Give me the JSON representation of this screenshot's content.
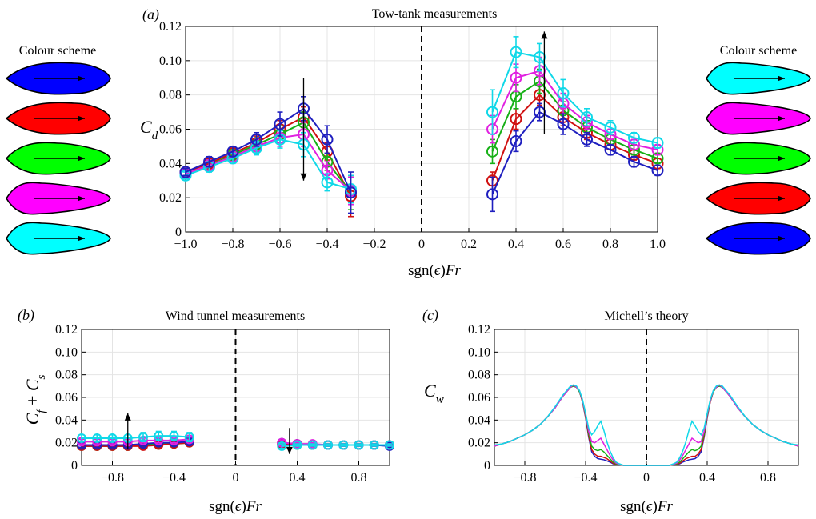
{
  "colors": {
    "blue": "#0000ff",
    "red": "#ff0000",
    "green": "#00ff00",
    "magenta": "#ff00ff",
    "cyan": "#00ffff",
    "darkblue": "#1f1fbf",
    "darkred": "#d01010",
    "darkgreen": "#16b016",
    "darkmagenta": "#e020e0",
    "darkcyan": "#10d8e8"
  },
  "legends": {
    "left": {
      "title": "Colour scheme",
      "shapes": [
        {
          "fill": "blue",
          "shape": "fore"
        },
        {
          "fill": "red",
          "shape": "fore"
        },
        {
          "fill": "green",
          "shape": "sym"
        },
        {
          "fill": "magenta",
          "shape": "aft"
        },
        {
          "fill": "cyan",
          "shape": "aft"
        }
      ]
    },
    "right": {
      "title": "Colour scheme",
      "shapes": [
        {
          "fill": "cyan",
          "shape": "aft"
        },
        {
          "fill": "magenta",
          "shape": "aft"
        },
        {
          "fill": "green",
          "shape": "sym"
        },
        {
          "fill": "red",
          "shape": "fore"
        },
        {
          "fill": "blue",
          "shape": "fore"
        }
      ]
    }
  },
  "chart_data": [
    {
      "id": "a",
      "panel_label": "(a)",
      "type": "line",
      "title": "Tow-tank measurements",
      "ylabel": "C_d",
      "xlabel": "sgn(ϵ)Fr",
      "xlim": [
        -1.0,
        1.0
      ],
      "ylim": [
        0,
        0.12
      ],
      "xticks": [
        -1.0,
        -0.8,
        -0.6,
        -0.4,
        -0.2,
        0,
        0.2,
        0.4,
        0.6,
        0.8,
        1.0
      ],
      "xtick_labels": [
        "−1.0",
        "−0.8",
        "−0.6",
        "−0.4",
        "−0.2",
        "0",
        "0.2",
        "0.4",
        "0.6",
        "0.8",
        "1.0"
      ],
      "yticks": [
        0,
        0.02,
        0.04,
        0.06,
        0.08,
        0.1,
        0.12
      ],
      "ytick_labels": [
        "0",
        "0.02",
        "0.04",
        "0.06",
        "0.08",
        "0.10",
        "0.12"
      ],
      "grid": true,
      "markers": true,
      "x_neg": [
        -1.0,
        -0.9,
        -0.8,
        -0.7,
        -0.6,
        -0.5,
        -0.4,
        -0.3
      ],
      "x_pos": [
        0.3,
        0.4,
        0.5,
        0.6,
        0.7,
        0.8,
        0.9,
        1.0
      ],
      "series": [
        {
          "color": "darkred",
          "neg": [
            0.035,
            0.04,
            0.046,
            0.052,
            0.06,
            0.067,
            0.047,
            0.021
          ],
          "pos": [
            0.03,
            0.066,
            0.08,
            0.067,
            0.058,
            0.051,
            0.045,
            0.04
          ],
          "err_neg": [
            0.002,
            0.003,
            0.003,
            0.004,
            0.005,
            0.006,
            0.005,
            0.012
          ],
          "err_pos": [
            0.005,
            0.006,
            0.006,
            0.005,
            0.004,
            0.003,
            0.003,
            0.003
          ]
        },
        {
          "color": "darkgreen",
          "neg": [
            0.034,
            0.039,
            0.045,
            0.051,
            0.057,
            0.064,
            0.041,
            0.023
          ],
          "pos": [
            0.047,
            0.079,
            0.088,
            0.071,
            0.061,
            0.054,
            0.048,
            0.043
          ],
          "err_neg": [
            0.002,
            0.003,
            0.003,
            0.004,
            0.005,
            0.006,
            0.005,
            0.01
          ],
          "err_pos": [
            0.007,
            0.007,
            0.007,
            0.005,
            0.004,
            0.003,
            0.003,
            0.003
          ]
        },
        {
          "color": "darkmagenta",
          "neg": [
            0.034,
            0.039,
            0.044,
            0.05,
            0.055,
            0.057,
            0.036,
            0.024
          ],
          "pos": [
            0.06,
            0.09,
            0.094,
            0.075,
            0.064,
            0.057,
            0.051,
            0.048
          ],
          "err_neg": [
            0.002,
            0.003,
            0.003,
            0.004,
            0.005,
            0.007,
            0.005,
            0.008
          ],
          "err_pos": [
            0.008,
            0.008,
            0.008,
            0.006,
            0.004,
            0.003,
            0.003,
            0.003
          ]
        },
        {
          "color": "darkcyan",
          "neg": [
            0.033,
            0.038,
            0.043,
            0.049,
            0.054,
            0.051,
            0.029,
            0.025
          ],
          "pos": [
            0.07,
            0.105,
            0.102,
            0.081,
            0.067,
            0.061,
            0.055,
            0.052
          ],
          "err_neg": [
            0.002,
            0.003,
            0.003,
            0.004,
            0.005,
            0.007,
            0.005,
            0.008
          ],
          "err_pos": [
            0.013,
            0.009,
            0.008,
            0.008,
            0.005,
            0.004,
            0.003,
            0.003
          ]
        },
        {
          "color": "darkblue",
          "neg": [
            0.035,
            0.041,
            0.047,
            0.054,
            0.063,
            0.072,
            0.054,
            0.023
          ],
          "pos": [
            0.022,
            0.053,
            0.07,
            0.063,
            0.054,
            0.048,
            0.041,
            0.036
          ],
          "err_neg": [
            0.002,
            0.003,
            0.003,
            0.004,
            0.007,
            0.007,
            0.008,
            0.012
          ],
          "err_pos": [
            0.01,
            0.006,
            0.005,
            0.006,
            0.004,
            0.003,
            0.003,
            0.003
          ]
        }
      ],
      "arrows": [
        {
          "x": -0.5,
          "y_from": 0.09,
          "y_to": 0.03
        },
        {
          "x": 0.52,
          "y_from": 0.057,
          "y_to": 0.117
        }
      ]
    },
    {
      "id": "b",
      "panel_label": "(b)",
      "type": "line",
      "title": "Wind tunnel measurements",
      "ylabel": "C_f + C_s",
      "xlabel": "sgn(ϵ)Fr",
      "xlim": [
        -1.0,
        1.0
      ],
      "ylim": [
        0,
        0.12
      ],
      "xticks": [
        -0.8,
        -0.4,
        0,
        0.4,
        0.8
      ],
      "xtick_labels": [
        "−0.8",
        "−0.4",
        "0",
        "0.4",
        "0.8"
      ],
      "yticks": [
        0,
        0.02,
        0.04,
        0.06,
        0.08,
        0.1,
        0.12
      ],
      "ytick_labels": [
        "0",
        "0.02",
        "0.04",
        "0.06",
        "0.08",
        "0.10",
        "0.12"
      ],
      "grid": true,
      "markers": true,
      "x_neg": [
        -1.0,
        -0.9,
        -0.8,
        -0.7,
        -0.6,
        -0.5,
        -0.4,
        -0.3
      ],
      "x_pos": [
        0.3,
        0.4,
        0.5,
        0.6,
        0.7,
        0.8,
        0.9,
        1.0
      ],
      "series": [
        {
          "color": "darkgreen",
          "neg": [
            0.017,
            0.017,
            0.017,
            0.017,
            0.018,
            0.019,
            0.019,
            0.02
          ],
          "pos": [
            0.018,
            0.018,
            0.018,
            0.018,
            0.018,
            0.018,
            0.018,
            0.018
          ],
          "err_neg": [
            0.002,
            0.002,
            0.002,
            0.002,
            0.002,
            0.002,
            0.002,
            0.002
          ],
          "err_pos": [
            0.002,
            0.001,
            0.001,
            0.001,
            0.001,
            0.001,
            0.001,
            0.001
          ]
        },
        {
          "color": "darkred",
          "neg": [
            0.017,
            0.017,
            0.017,
            0.017,
            0.017,
            0.018,
            0.019,
            0.02
          ],
          "pos": [
            0.019,
            0.019,
            0.018,
            0.018,
            0.018,
            0.018,
            0.018,
            0.018
          ],
          "err_neg": [
            0.002,
            0.002,
            0.002,
            0.002,
            0.002,
            0.002,
            0.002,
            0.002
          ],
          "err_pos": [
            0.002,
            0.001,
            0.001,
            0.001,
            0.001,
            0.001,
            0.001,
            0.001
          ]
        },
        {
          "color": "darkblue",
          "neg": [
            0.018,
            0.018,
            0.018,
            0.018,
            0.019,
            0.02,
            0.02,
            0.021
          ],
          "pos": [
            0.02,
            0.019,
            0.018,
            0.018,
            0.018,
            0.018,
            0.018,
            0.017
          ],
          "err_neg": [
            0.002,
            0.002,
            0.002,
            0.002,
            0.002,
            0.002,
            0.002,
            0.002
          ],
          "err_pos": [
            0.002,
            0.001,
            0.001,
            0.001,
            0.001,
            0.001,
            0.001,
            0.001
          ]
        },
        {
          "color": "darkmagenta",
          "neg": [
            0.021,
            0.021,
            0.021,
            0.021,
            0.022,
            0.022,
            0.022,
            0.023
          ],
          "pos": [
            0.02,
            0.019,
            0.019,
            0.018,
            0.018,
            0.018,
            0.018,
            0.018
          ],
          "err_neg": [
            0.002,
            0.002,
            0.002,
            0.002,
            0.002,
            0.002,
            0.002,
            0.002
          ],
          "err_pos": [
            0.002,
            0.001,
            0.001,
            0.001,
            0.001,
            0.001,
            0.001,
            0.001
          ]
        },
        {
          "color": "darkcyan",
          "neg": [
            0.024,
            0.024,
            0.024,
            0.024,
            0.025,
            0.026,
            0.026,
            0.025
          ],
          "pos": [
            0.017,
            0.018,
            0.018,
            0.018,
            0.018,
            0.018,
            0.018,
            0.018
          ],
          "err_neg": [
            0.003,
            0.003,
            0.003,
            0.003,
            0.004,
            0.004,
            0.004,
            0.004
          ],
          "err_pos": [
            0.002,
            0.001,
            0.001,
            0.001,
            0.001,
            0.001,
            0.001,
            0.001
          ]
        }
      ],
      "arrows": [
        {
          "x": -0.7,
          "y_from": 0.014,
          "y_to": 0.046
        },
        {
          "x": 0.35,
          "y_from": 0.033,
          "y_to": 0.01
        }
      ]
    },
    {
      "id": "c",
      "panel_label": "(c)",
      "type": "line",
      "title": "Michell’s theory",
      "ylabel": "C_w",
      "xlabel": "sgn(ϵ)Fr",
      "xlim": [
        -1.0,
        1.0
      ],
      "ylim": [
        0,
        0.12
      ],
      "xticks": [
        -0.8,
        -0.4,
        0,
        0.4,
        0.8
      ],
      "xtick_labels": [
        "−0.8",
        "−0.4",
        "0",
        "0.4",
        "0.8"
      ],
      "yticks": [
        0,
        0.02,
        0.04,
        0.06,
        0.08,
        0.1,
        0.12
      ],
      "ytick_labels": [
        "0",
        "0.02",
        "0.04",
        "0.06",
        "0.08",
        "0.10",
        "0.12"
      ],
      "grid": true,
      "markers": false,
      "x": [
        0.0,
        0.05,
        0.1,
        0.15,
        0.18,
        0.2,
        0.22,
        0.24,
        0.26,
        0.28,
        0.3,
        0.32,
        0.34,
        0.36,
        0.38,
        0.4,
        0.42,
        0.44,
        0.46,
        0.48,
        0.5,
        0.55,
        0.6,
        0.65,
        0.7,
        0.75,
        0.8,
        0.85,
        0.9,
        0.95,
        1.0
      ],
      "series": [
        {
          "color": "darkblue",
          "y": [
            0.0,
            0.0,
            0.0,
            0.0,
            0.0005,
            0.0008,
            0.0015,
            0.003,
            0.004,
            0.005,
            0.0055,
            0.006,
            0.008,
            0.012,
            0.025,
            0.042,
            0.056,
            0.065,
            0.069,
            0.07,
            0.069,
            0.061,
            0.051,
            0.043,
            0.036,
            0.031,
            0.027,
            0.024,
            0.021,
            0.019,
            0.017
          ]
        },
        {
          "color": "darkred",
          "y": [
            0.0,
            0.0,
            0.0,
            0.0,
            0.0006,
            0.001,
            0.002,
            0.004,
            0.006,
            0.007,
            0.008,
            0.008,
            0.01,
            0.014,
            0.026,
            0.043,
            0.056,
            0.065,
            0.069,
            0.07,
            0.069,
            0.061,
            0.051,
            0.043,
            0.036,
            0.031,
            0.027,
            0.024,
            0.021,
            0.019,
            0.017
          ]
        },
        {
          "color": "darkgreen",
          "y": [
            0.0,
            0.0,
            0.0,
            0.0,
            0.0008,
            0.0015,
            0.003,
            0.006,
            0.009,
            0.012,
            0.014,
            0.013,
            0.014,
            0.017,
            0.028,
            0.044,
            0.057,
            0.065,
            0.069,
            0.07,
            0.069,
            0.061,
            0.051,
            0.043,
            0.036,
            0.031,
            0.027,
            0.024,
            0.021,
            0.019,
            0.017
          ]
        },
        {
          "color": "darkmagenta",
          "y": [
            0.0,
            0.0,
            0.0,
            0.0,
            0.001,
            0.002,
            0.005,
            0.009,
            0.014,
            0.019,
            0.024,
            0.022,
            0.02,
            0.021,
            0.03,
            0.045,
            0.057,
            0.066,
            0.069,
            0.071,
            0.069,
            0.061,
            0.051,
            0.043,
            0.036,
            0.031,
            0.027,
            0.024,
            0.021,
            0.019,
            0.017
          ]
        },
        {
          "color": "darkcyan",
          "y": [
            0.0,
            0.0,
            0.0,
            0.0,
            0.0015,
            0.003,
            0.007,
            0.013,
            0.021,
            0.031,
            0.039,
            0.035,
            0.03,
            0.027,
            0.033,
            0.046,
            0.058,
            0.066,
            0.07,
            0.071,
            0.07,
            0.062,
            0.052,
            0.043,
            0.036,
            0.031,
            0.027,
            0.024,
            0.021,
            0.019,
            0.018
          ]
        }
      ]
    }
  ]
}
